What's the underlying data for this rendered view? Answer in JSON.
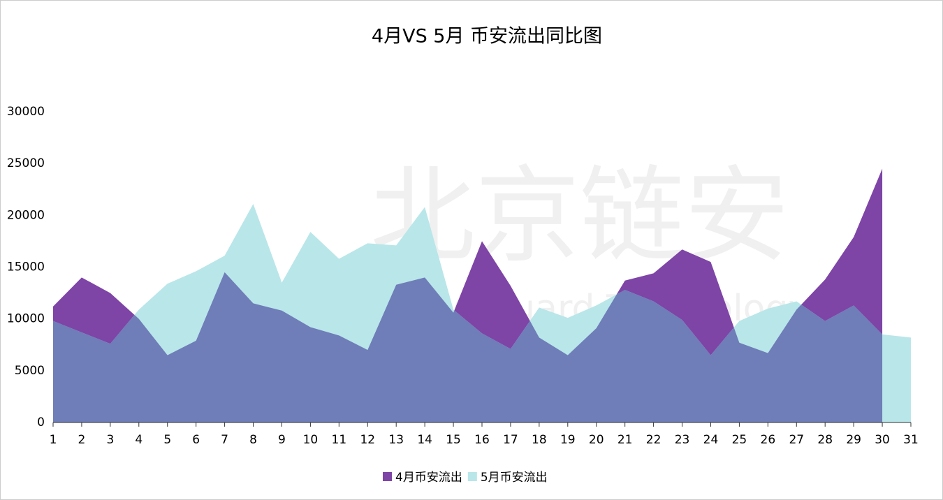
{
  "chart_data": {
    "type": "area",
    "title": "4月VS 5月 币安流出同比图",
    "watermark": [
      "北京链安",
      "Chains Guard Technology"
    ],
    "categories": [
      "1",
      "2",
      "3",
      "4",
      "5",
      "6",
      "7",
      "8",
      "9",
      "10",
      "11",
      "12",
      "13",
      "14",
      "15",
      "16",
      "17",
      "18",
      "19",
      "20",
      "21",
      "22",
      "23",
      "24",
      "25",
      "26",
      "27",
      "28",
      "29",
      "30",
      "31"
    ],
    "series": [
      {
        "name": "4月币安流出",
        "color": "#7e44a6",
        "values": [
          11200,
          14000,
          12500,
          10000,
          6500,
          7900,
          14500,
          11500,
          10800,
          9200,
          8400,
          7000,
          13300,
          14000,
          10600,
          17500,
          13200,
          8200,
          6500,
          9100,
          13700,
          14400,
          16700,
          15500,
          7700,
          6700,
          10900,
          13800,
          17900,
          24500,
          null
        ]
      },
      {
        "name": "5月币安流出",
        "color": "#b9e6e9",
        "values": [
          9800,
          8700,
          7600,
          10900,
          13400,
          14600,
          16100,
          21100,
          13500,
          18400,
          15800,
          17300,
          17100,
          20800,
          10900,
          8600,
          7100,
          11100,
          10100,
          11300,
          12800,
          11700,
          9900,
          6500,
          9800,
          11000,
          11700,
          9800,
          11300,
          8500,
          8200
        ]
      }
    ],
    "ylim": [
      0,
      30000
    ],
    "yticks": [
      0,
      5000,
      10000,
      15000,
      20000,
      25000,
      30000
    ],
    "grid": false,
    "legend": "bottom"
  }
}
